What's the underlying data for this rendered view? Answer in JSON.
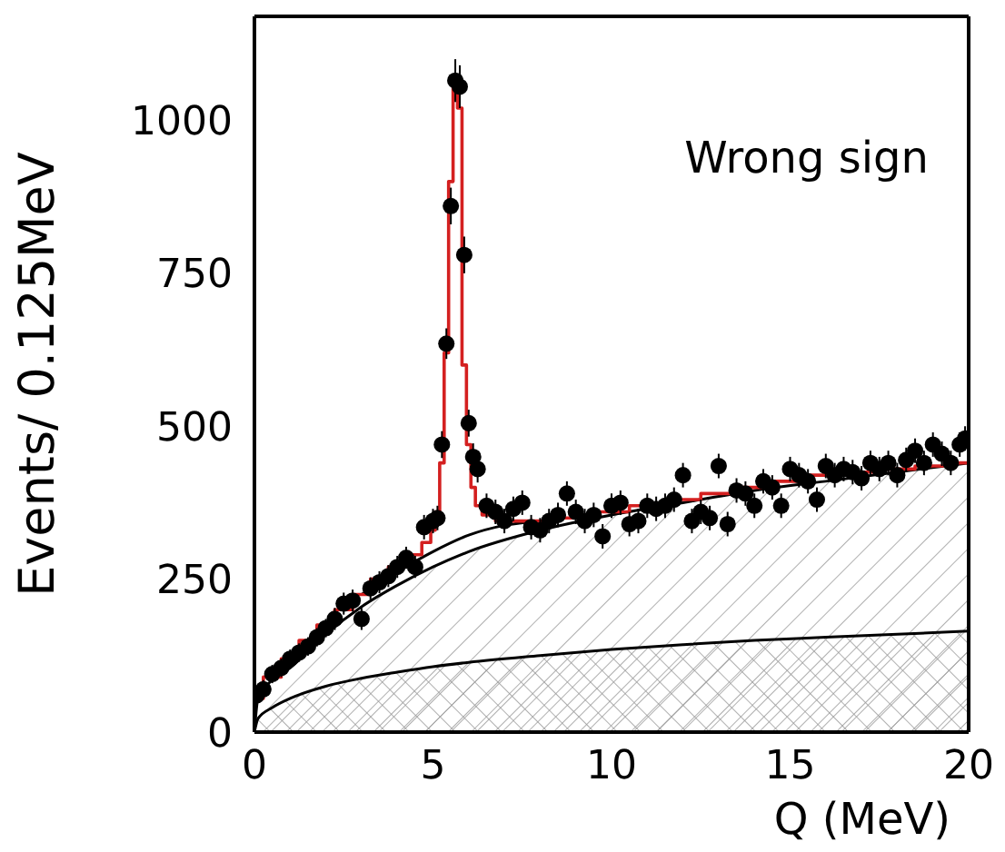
{
  "chart_data": {
    "type": "scatter",
    "xlabel": "Q (MeV)",
    "ylabel": "Events/ 0.125MeV",
    "xlim": [
      0,
      20
    ],
    "xticks": [
      0,
      5,
      10,
      15,
      20
    ],
    "ylim": [
      0,
      1170
    ],
    "yticks": [
      0,
      250,
      500,
      750,
      1000
    ],
    "annotations": [
      "Wrong sign"
    ],
    "series": [
      {
        "type": "area",
        "color": "#000000",
        "x": [
          0,
          0.1,
          0.5,
          1,
          2,
          3,
          4,
          5,
          6,
          8,
          10,
          12,
          14,
          16,
          18,
          20
        ],
        "values": [
          0,
          55,
          85,
          105,
          160,
          205,
          240,
          270,
          295,
          330,
          355,
          375,
          395,
          410,
          425,
          440
        ]
      },
      {
        "type": "area",
        "color": "#000000",
        "x": [
          0,
          0.1,
          0.5,
          1,
          2,
          3,
          4,
          5,
          6,
          8,
          10,
          12,
          14,
          16,
          18,
          20
        ],
        "values": [
          0,
          22,
          40,
          55,
          75,
          88,
          98,
          107,
          114,
          125,
          135,
          143,
          150,
          155,
          160,
          165
        ]
      },
      {
        "type": "line",
        "color": "#000000",
        "x": [
          3,
          4,
          5,
          6,
          7,
          8
        ],
        "values": [
          225,
          262,
          295,
          322,
          338,
          345
        ]
      },
      {
        "type": "step",
        "color": "#d42020",
        "x": [
          0,
          0.5,
          1,
          1.5,
          2,
          2.5,
          3,
          3.5,
          4,
          4.5,
          4.875,
          5,
          5.125,
          5.25,
          5.375,
          5.5,
          5.625,
          5.75,
          5.875,
          6,
          6.125,
          6.25,
          6.5,
          7,
          8,
          9,
          10,
          11,
          12,
          13,
          14,
          15,
          16,
          17,
          18,
          19,
          20
        ],
        "values": [
          55,
          90,
          120,
          150,
          175,
          200,
          225,
          250,
          270,
          290,
          310,
          330,
          360,
          440,
          620,
          900,
          1060,
          1020,
          600,
          470,
          400,
          370,
          355,
          345,
          345,
          350,
          360,
          370,
          380,
          390,
          400,
          410,
          420,
          425,
          430,
          435,
          440
        ]
      },
      {
        "color": "#000000",
        "marker": "circle",
        "x": [
          0.0625,
          0.25,
          0.5,
          0.75,
          1,
          1.25,
          1.5,
          1.75,
          2,
          2.25,
          2.5,
          2.75,
          3,
          3.25,
          3.5,
          3.75,
          4,
          4.25,
          4.5,
          4.75,
          5,
          5.125,
          5.25,
          5.375,
          5.5,
          5.625,
          5.75,
          5.875,
          6,
          6.125,
          6.25,
          6.5,
          6.75,
          7,
          7.25,
          7.5,
          7.75,
          8,
          8.25,
          8.5,
          8.75,
          9,
          9.25,
          9.5,
          9.75,
          10,
          10.25,
          10.5,
          10.75,
          11,
          11.25,
          11.5,
          11.75,
          12,
          12.25,
          12.5,
          12.75,
          13,
          13.25,
          13.5,
          13.75,
          14,
          14.25,
          14.5,
          14.75,
          15,
          15.25,
          15.5,
          15.75,
          16,
          16.25,
          16.5,
          16.75,
          17,
          17.25,
          17.5,
          17.75,
          18,
          18.25,
          18.5,
          18.75,
          19,
          19.25,
          19.5,
          19.75,
          19.9
        ],
        "values": [
          60,
          70,
          95,
          105,
          120,
          130,
          140,
          155,
          170,
          185,
          210,
          215,
          185,
          235,
          245,
          255,
          270,
          285,
          270,
          335,
          345,
          350,
          470,
          635,
          860,
          1065,
          1055,
          780,
          505,
          450,
          430,
          370,
          360,
          345,
          365,
          375,
          335,
          330,
          345,
          355,
          390,
          360,
          345,
          355,
          320,
          370,
          375,
          340,
          345,
          370,
          365,
          370,
          380,
          420,
          345,
          360,
          350,
          435,
          340,
          395,
          390,
          370,
          410,
          400,
          370,
          430,
          420,
          410,
          380,
          435,
          420,
          430,
          425,
          415,
          440,
          430,
          440,
          420,
          445,
          460,
          440,
          470,
          455,
          440,
          470,
          480
        ],
        "errors": [
          15,
          15,
          15,
          15,
          15,
          15,
          15,
          15,
          15,
          18,
          18,
          18,
          18,
          18,
          18,
          18,
          18,
          18,
          18,
          20,
          20,
          20,
          22,
          25,
          30,
          35,
          35,
          30,
          22,
          22,
          22,
          20,
          20,
          20,
          20,
          20,
          20,
          20,
          20,
          20,
          20,
          20,
          20,
          20,
          20,
          20,
          20,
          20,
          20,
          20,
          20,
          20,
          20,
          20,
          20,
          20,
          20,
          20,
          20,
          20,
          20,
          20,
          20,
          20,
          20,
          20,
          20,
          20,
          20,
          20,
          20,
          20,
          20,
          20,
          20,
          20,
          20,
          20,
          20,
          20,
          20,
          20,
          20,
          20,
          20,
          20
        ]
      }
    ]
  }
}
